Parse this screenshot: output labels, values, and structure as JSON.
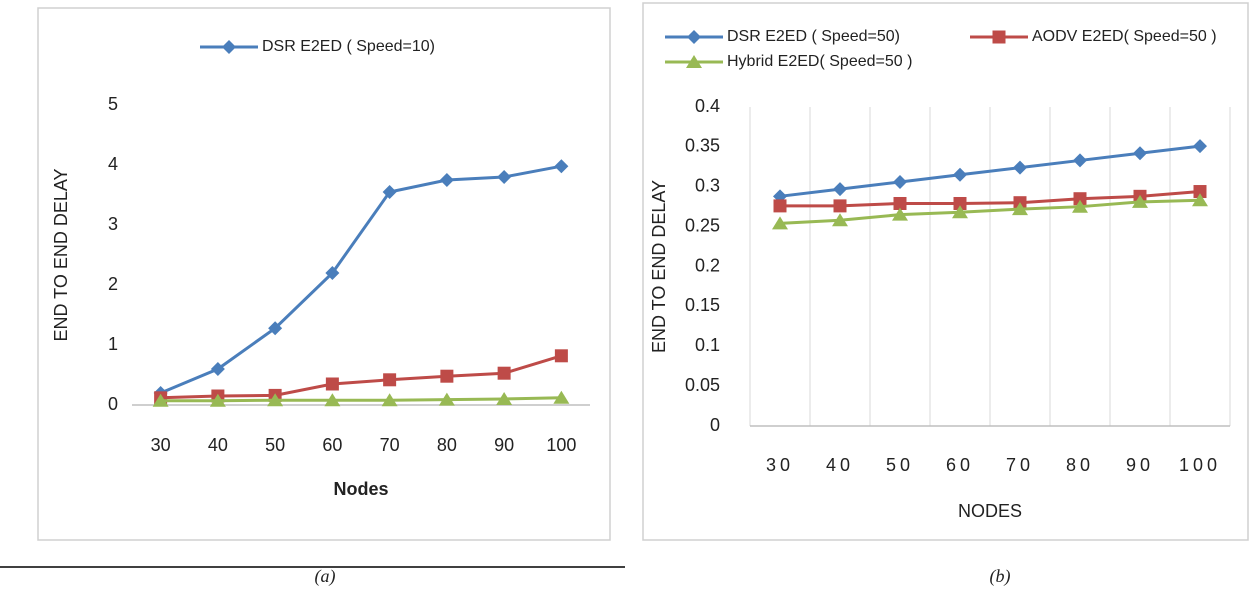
{
  "chart_data": [
    {
      "type": "line",
      "caption": "(a)",
      "x_label": "Nodes",
      "y_label": "END TO END DELAY",
      "categories": [
        "30",
        "40",
        "50",
        "60",
        "70",
        "80",
        "90",
        "100"
      ],
      "ylim": [
        0,
        5
      ],
      "yticks": [
        0,
        1,
        2,
        3,
        4,
        5
      ],
      "grid": false,
      "series": [
        {
          "name": "DSR E2ED ( Speed=10)",
          "color": "#4a7ebb",
          "marker": "diamond",
          "values": [
            0.2,
            0.6,
            1.28,
            2.2,
            3.55,
            3.75,
            3.8,
            3.98
          ]
        },
        {
          "color": "#be4b48",
          "marker": "square",
          "values": [
            0.12,
            0.15,
            0.16,
            0.35,
            0.42,
            0.48,
            0.53,
            0.82
          ]
        },
        {
          "color": "#98b954",
          "marker": "triangle",
          "values": [
            0.07,
            0.07,
            0.08,
            0.08,
            0.08,
            0.09,
            0.1,
            0.12
          ]
        }
      ]
    },
    {
      "type": "line",
      "caption": "(b)",
      "x_label": "NODES",
      "y_label": "END TO END DELAY",
      "categories": [
        "30",
        "40",
        "50",
        "60",
        "70",
        "80",
        "90",
        "100"
      ],
      "ylim": [
        0,
        0.4
      ],
      "yticks": [
        0,
        0.05,
        0.1,
        0.15,
        0.2,
        0.25,
        0.3,
        0.35,
        0.4
      ],
      "grid": false,
      "series": [
        {
          "name": "DSR E2ED ( Speed=50)",
          "color": "#4a7ebb",
          "marker": "diamond",
          "values": [
            0.288,
            0.297,
            0.306,
            0.315,
            0.324,
            0.333,
            0.342,
            0.351
          ]
        },
        {
          "name": "AODV E2ED( Speed=50 )",
          "color": "#be4b48",
          "marker": "square",
          "values": [
            0.276,
            0.276,
            0.279,
            0.279,
            0.28,
            0.285,
            0.288,
            0.294
          ]
        },
        {
          "name": "Hybrid E2ED( Speed=50 )",
          "color": "#98b954",
          "marker": "triangle",
          "values": [
            0.254,
            0.258,
            0.265,
            0.268,
            0.272,
            0.275,
            0.281,
            0.283
          ]
        }
      ]
    }
  ]
}
